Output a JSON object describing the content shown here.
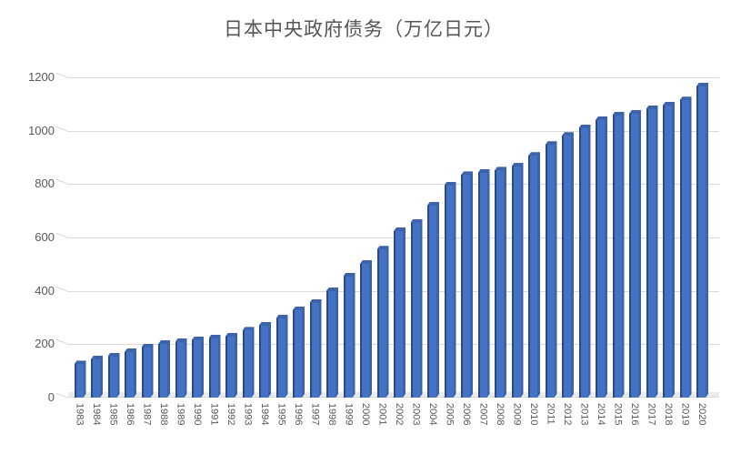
{
  "chart_data": {
    "type": "bar",
    "style": "3d-column",
    "title": "日本中央政府债务（万亿日元）",
    "xlabel": "",
    "ylabel": "",
    "categories": [
      "1983",
      "1984",
      "1985",
      "1986",
      "1987",
      "1988",
      "1989",
      "1990",
      "1991",
      "1992",
      "1993",
      "1994",
      "1995",
      "1996",
      "1997",
      "1998",
      "1999",
      "2000",
      "2001",
      "2002",
      "2003",
      "2004",
      "2005",
      "2006",
      "2007",
      "2008",
      "2009",
      "2010",
      "2011",
      "2012",
      "2013",
      "2014",
      "2015",
      "2016",
      "2017",
      "2018",
      "2019",
      "2020"
    ],
    "values": [
      125,
      144,
      155,
      171,
      189,
      201,
      208,
      216,
      223,
      230,
      251,
      271,
      297,
      328,
      356,
      400,
      455,
      502,
      555,
      624,
      656,
      721,
      795,
      834,
      842,
      851,
      866,
      906,
      947,
      981,
      1010,
      1040,
      1058,
      1064,
      1081,
      1095,
      1114,
      1167
    ],
    "ylim": [
      0,
      1200
    ],
    "yticks": [
      0,
      200,
      400,
      600,
      800,
      1000,
      1200
    ],
    "grid": true,
    "legend": false,
    "colors": {
      "bar_face": "#4472C4",
      "bar_left_edge": "#2B4A84",
      "bar_depth": "#3D63AB",
      "gridline": "#D9D9D9",
      "floor": "#EBEBEB",
      "axis_text": "#595959",
      "title_text": "#555555"
    }
  }
}
